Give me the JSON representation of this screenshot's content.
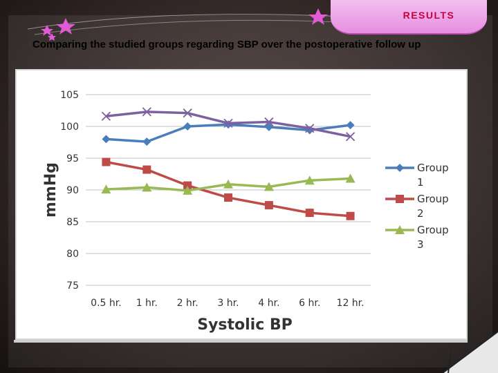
{
  "slide": {
    "banner_label": "RESULTS",
    "heading": "Comparing the studied groups regarding SBP over the postoperative follow up"
  },
  "colors": {
    "banner": "#e58fe0",
    "banner_text": "#c8003c",
    "group1": "#4a7ebb",
    "group2": "#be4b48",
    "group3": "#98b954",
    "group4": "#7d60a0",
    "grid": "#bfbfbf"
  },
  "chart_data": {
    "type": "line",
    "title": "",
    "xlabel": "Systolic BP",
    "ylabel": "mmHg",
    "categories": [
      "0.5 hr.",
      "1 hr.",
      "2 hr.",
      "3 hr.",
      "4 hr.",
      "6 hr.",
      "12 hr."
    ],
    "ylim": [
      75,
      105
    ],
    "yticks": [
      75,
      80,
      85,
      90,
      95,
      100,
      105
    ],
    "grid": true,
    "legend": "right",
    "series": [
      {
        "name": "Group 1",
        "marker": "diamond",
        "values": [
          98.0,
          97.6,
          100.0,
          100.3,
          99.9,
          99.4,
          100.2
        ]
      },
      {
        "name": "Group 2",
        "marker": "square",
        "values": [
          94.4,
          93.2,
          90.7,
          88.8,
          87.6,
          86.4,
          85.9
        ]
      },
      {
        "name": "Group 3",
        "marker": "triangle",
        "values": [
          90.1,
          90.4,
          89.9,
          90.9,
          90.5,
          91.5,
          91.8
        ]
      },
      {
        "name": "",
        "marker": "x",
        "values": [
          101.6,
          102.3,
          102.1,
          100.5,
          100.7,
          99.7,
          98.4
        ]
      }
    ]
  }
}
